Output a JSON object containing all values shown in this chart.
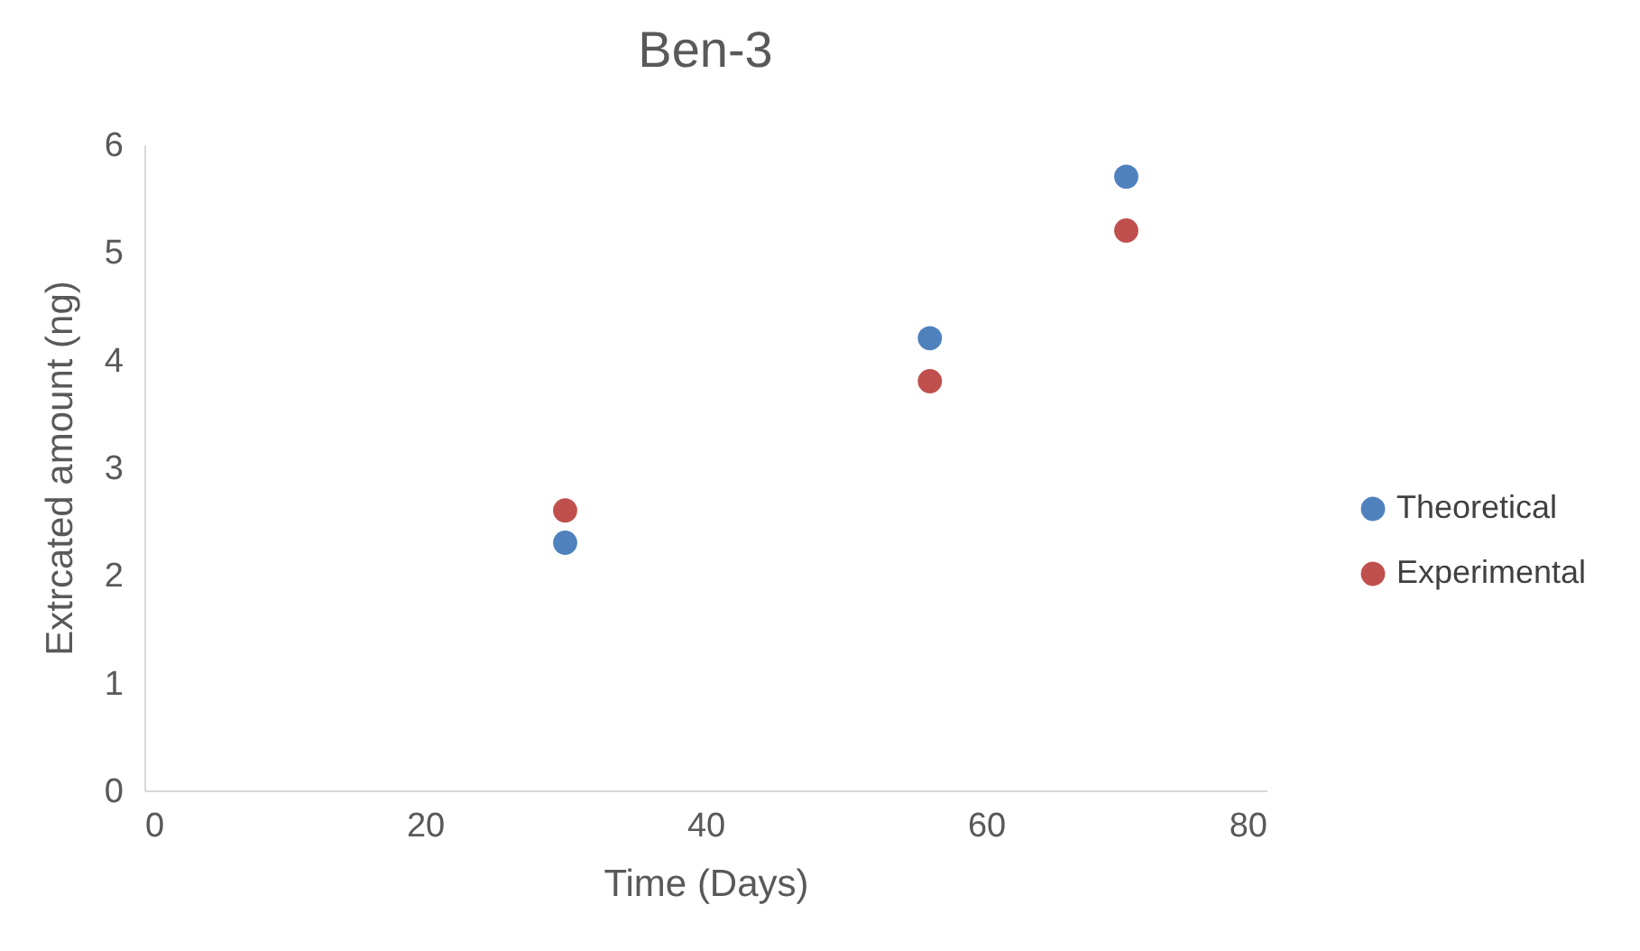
{
  "chart_data": {
    "type": "scatter",
    "title": "Ben-3",
    "xlabel": "Time (Days)",
    "ylabel": "Extrcated amount (ng)",
    "x": [
      30,
      56,
      70
    ],
    "series": [
      {
        "name": "Theoretical",
        "color": "#4f81bd",
        "values": [
          2.3,
          4.2,
          5.7
        ]
      },
      {
        "name": "Experimental",
        "color": "#c0504d",
        "values": [
          2.6,
          3.8,
          5.2
        ]
      }
    ],
    "xlim": [
      0,
      80
    ],
    "xticks": [
      0,
      20,
      40,
      60,
      80
    ],
    "ylim": [
      0,
      6
    ],
    "yticks": [
      0,
      1,
      2,
      3,
      4,
      5,
      6
    ],
    "grid": false,
    "legend": "right",
    "marker": "circle"
  }
}
